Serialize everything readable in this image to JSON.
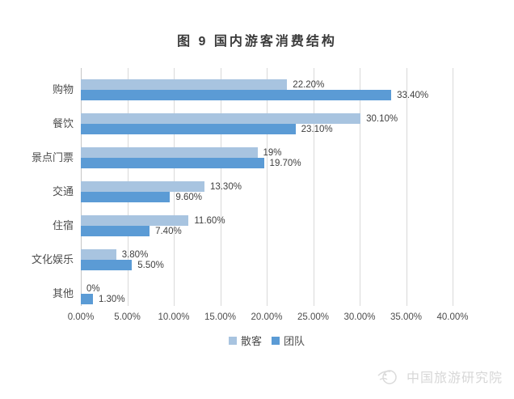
{
  "title": "图 9 国内游客消费结构",
  "chart_data": {
    "type": "bar",
    "orientation": "horizontal",
    "title": "图 9 国内游客消费结构",
    "categories": [
      "购物",
      "餐饮",
      "景点门票",
      "交通",
      "住宿",
      "文化娱乐",
      "其他"
    ],
    "series": [
      {
        "name": "散客",
        "key": "individual",
        "color": "#a8c4e0",
        "values": [
          22.2,
          30.1,
          19,
          13.3,
          11.6,
          3.8,
          0
        ],
        "labels": [
          "22.20%",
          "30.10%",
          "19%",
          "13.30%",
          "11.60%",
          "3.80%",
          "0%"
        ]
      },
      {
        "name": "团队",
        "key": "group",
        "color": "#5b9bd5",
        "values": [
          33.4,
          23.1,
          19.7,
          9.6,
          7.4,
          5.5,
          1.3
        ],
        "labels": [
          "33.40%",
          "23.10%",
          "19.70%",
          "9.60%",
          "7.40%",
          "5.50%",
          "1.30%"
        ]
      }
    ],
    "x_ticks": [
      "0.00%",
      "5.00%",
      "10.00%",
      "15.00%",
      "20.00%",
      "25.00%",
      "30.00%",
      "35.00%",
      "40.00%"
    ],
    "xlim": [
      0,
      40
    ],
    "grid": true,
    "legend_position": "bottom"
  },
  "watermark": {
    "text": "中国旅游研究院"
  },
  "colors": {
    "series_individual": "#a8c4e0",
    "series_group": "#5b9bd5",
    "gridline": "#d9d9d9",
    "axis_line": "#c6c6c6",
    "text": "#4d4d4d",
    "watermark": "#d7d7d7"
  }
}
